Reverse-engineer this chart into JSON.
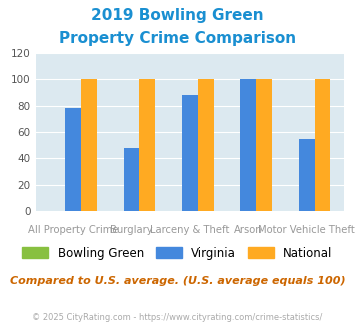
{
  "title_line1": "2019 Bowling Green",
  "title_line2": "Property Crime Comparison",
  "title_color": "#1a8fd1",
  "cat_labels_top": [
    "",
    "Burglary",
    "",
    "Arson",
    ""
  ],
  "cat_labels_bot": [
    "All Property Crime",
    "",
    "Larceny & Theft",
    "",
    "Motor Vehicle Theft"
  ],
  "bowling_green": [
    0,
    0,
    0,
    0,
    0
  ],
  "virginia": [
    78,
    48,
    88,
    100,
    55
  ],
  "national": [
    100,
    100,
    100,
    100,
    100
  ],
  "bg_color": "#dce9f0",
  "bar_color_bowling_green": "#88c040",
  "bar_color_virginia": "#4488dd",
  "bar_color_national": "#ffaa22",
  "ylim": [
    0,
    120
  ],
  "yticks": [
    0,
    20,
    40,
    60,
    80,
    100,
    120
  ],
  "xlabel_color": "#999999",
  "footer_text": "Compared to U.S. average. (U.S. average equals 100)",
  "footer_color": "#cc6600",
  "credit_text": "© 2025 CityRating.com - https://www.cityrating.com/crime-statistics/",
  "credit_color": "#aaaaaa",
  "legend_labels": [
    "Bowling Green",
    "Virginia",
    "National"
  ],
  "bar_width": 0.27
}
